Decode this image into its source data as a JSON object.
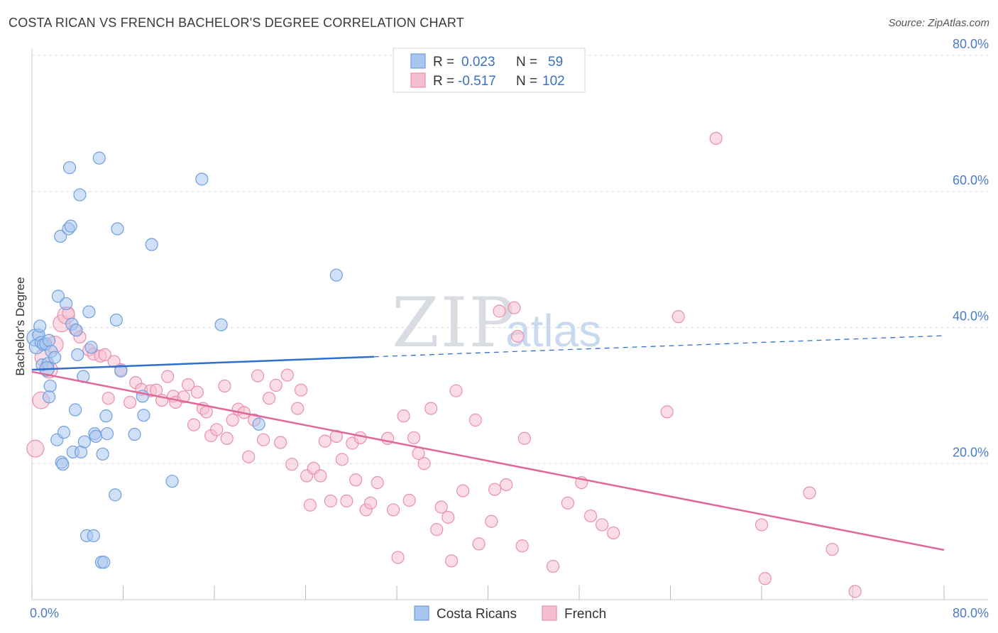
{
  "title": "COSTA RICAN VS FRENCH BACHELOR'S DEGREE CORRELATION CHART",
  "source": "Source: ZipAtlas.com",
  "watermark": {
    "zip": "ZIP",
    "atlas": "atlas"
  },
  "colors": {
    "blue_fill": "#a9c6ee",
    "blue_stroke": "#6f9fde",
    "blue_line": "#2f6fd0",
    "pink_fill": "#f5bfd0",
    "pink_stroke": "#e98fae",
    "pink_line": "#e0679a",
    "grid": "#dddddd",
    "axis_text": "#4a7cc7"
  },
  "legend": {
    "rows": [
      {
        "r_label": "R =",
        "r_value": "0.023",
        "n_label": "N =",
        "n_value": "59"
      },
      {
        "r_label": "R =",
        "r_value": "-0.517",
        "n_label": "N =",
        "n_value": "102"
      }
    ]
  },
  "chart_data": {
    "type": "scatter",
    "xlabel": "",
    "ylabel": "Bachelor's Degree",
    "xlim": [
      0,
      80
    ],
    "ylim": [
      0,
      80
    ],
    "x_tick_labels": [
      "0.0%",
      "80.0%"
    ],
    "y_ticks": [
      20,
      40,
      60,
      80
    ],
    "y_tick_labels": [
      "20.0%",
      "40.0%",
      "60.0%",
      "80.0%"
    ],
    "grid": true,
    "legend_position": "bottom-center",
    "series": [
      {
        "name": "Costa Ricans",
        "trend": {
          "x0": 0,
          "y0": 33.8,
          "x1": 30,
          "y1": 35.7,
          "dash_to_x": 80,
          "dash_to_y": 38.8
        },
        "points": [
          [
            0.3,
            38.5,
            14
          ],
          [
            0.4,
            37.2,
            12
          ],
          [
            0.6,
            38.9,
            10
          ],
          [
            0.7,
            40.2,
            10
          ],
          [
            0.8,
            37.8,
            10
          ],
          [
            0.9,
            34.5,
            10
          ],
          [
            1.0,
            37.5,
            10
          ],
          [
            1.2,
            37.6,
            10
          ],
          [
            1.4,
            34.7,
            10
          ],
          [
            1.5,
            38.1,
            10
          ],
          [
            1.6,
            31.4,
            10
          ],
          [
            1.7,
            36.5,
            10
          ],
          [
            1.5,
            29.8,
            10
          ],
          [
            2.0,
            35.6,
            10
          ],
          [
            2.2,
            23.5,
            10
          ],
          [
            2.3,
            44.6,
            10
          ],
          [
            2.5,
            53.4,
            10
          ],
          [
            2.6,
            20.2,
            10
          ],
          [
            2.7,
            19.9,
            10
          ],
          [
            2.8,
            24.6,
            10
          ],
          [
            3.0,
            43.5,
            10
          ],
          [
            3.2,
            54.5,
            10
          ],
          [
            3.4,
            54.9,
            10
          ],
          [
            3.3,
            63.5,
            10
          ],
          [
            3.5,
            40.5,
            10
          ],
          [
            3.6,
            21.7,
            10
          ],
          [
            3.8,
            27.9,
            10
          ],
          [
            3.9,
            39.6,
            10
          ],
          [
            4.0,
            36.0,
            10
          ],
          [
            4.2,
            59.5,
            10
          ],
          [
            4.3,
            21.7,
            10
          ],
          [
            4.5,
            32.8,
            10
          ],
          [
            4.6,
            23.2,
            10
          ],
          [
            4.8,
            9.4,
            10
          ],
          [
            5.0,
            42.3,
            10
          ],
          [
            5.2,
            37.1,
            10
          ],
          [
            5.4,
            9.4,
            10
          ],
          [
            5.5,
            24.4,
            10
          ],
          [
            5.6,
            24.0,
            10
          ],
          [
            5.9,
            64.9,
            10
          ],
          [
            6.1,
            5.5,
            10
          ],
          [
            6.2,
            21.4,
            10
          ],
          [
            6.3,
            5.5,
            10
          ],
          [
            6.5,
            27.0,
            10
          ],
          [
            6.6,
            24.4,
            10
          ],
          [
            7.3,
            15.4,
            10
          ],
          [
            7.4,
            41.1,
            10
          ],
          [
            7.5,
            54.5,
            10
          ],
          [
            7.8,
            33.6,
            10
          ],
          [
            9.0,
            24.3,
            10
          ],
          [
            9.7,
            29.9,
            10
          ],
          [
            9.8,
            27.1,
            10
          ],
          [
            10.5,
            52.2,
            10
          ],
          [
            12.3,
            17.4,
            10
          ],
          [
            14.9,
            61.8,
            10
          ],
          [
            16.6,
            40.4,
            10
          ],
          [
            19.9,
            25.8,
            10
          ],
          [
            26.7,
            47.7,
            10
          ],
          [
            1.3,
            33.9,
            12
          ]
        ]
      },
      {
        "name": "French",
        "trend": {
          "x0": 0,
          "y0": 33.5,
          "x1": 80,
          "y1": 7.3
        },
        "points": [
          [
            0.3,
            22.2,
            14
          ],
          [
            0.8,
            29.3,
            14
          ],
          [
            1.0,
            35.6,
            14
          ],
          [
            1.5,
            33.8,
            14
          ],
          [
            2.0,
            37.5,
            14
          ],
          [
            2.6,
            40.6,
            14
          ],
          [
            3.0,
            41.8,
            14
          ],
          [
            3.2,
            42.1,
            10
          ],
          [
            3.8,
            39.7,
            10
          ],
          [
            4.2,
            38.6,
            10
          ],
          [
            5.0,
            36.7,
            10
          ],
          [
            5.4,
            36.1,
            10
          ],
          [
            6.0,
            35.8,
            10
          ],
          [
            6.4,
            36.0,
            10
          ],
          [
            6.7,
            29.6,
            10
          ],
          [
            7.2,
            35.0,
            10
          ],
          [
            7.8,
            33.8,
            10
          ],
          [
            8.6,
            29.0,
            10
          ],
          [
            9.1,
            31.9,
            10
          ],
          [
            9.6,
            30.9,
            10
          ],
          [
            10.4,
            30.7,
            10
          ],
          [
            10.9,
            30.8,
            10
          ],
          [
            11.4,
            29.3,
            10
          ],
          [
            11.9,
            32.8,
            10
          ],
          [
            12.4,
            29.9,
            10
          ],
          [
            12.6,
            29.0,
            10
          ],
          [
            13.3,
            29.8,
            10
          ],
          [
            13.7,
            31.6,
            10
          ],
          [
            14.2,
            25.7,
            10
          ],
          [
            14.5,
            30.5,
            10
          ],
          [
            15.0,
            28.1,
            10
          ],
          [
            15.3,
            27.6,
            10
          ],
          [
            15.7,
            24.1,
            10
          ],
          [
            16.2,
            25.0,
            10
          ],
          [
            16.9,
            31.4,
            10
          ],
          [
            17.1,
            23.7,
            10
          ],
          [
            17.6,
            26.4,
            10
          ],
          [
            18.1,
            28.0,
            10
          ],
          [
            18.6,
            27.5,
            10
          ],
          [
            19.0,
            21.0,
            10
          ],
          [
            19.5,
            26.4,
            10
          ],
          [
            19.8,
            32.9,
            10
          ],
          [
            20.3,
            23.5,
            10
          ],
          [
            20.8,
            29.6,
            10
          ],
          [
            21.4,
            31.5,
            10
          ],
          [
            21.8,
            23.1,
            10
          ],
          [
            22.4,
            33.0,
            10
          ],
          [
            22.8,
            19.9,
            10
          ],
          [
            23.3,
            28.1,
            10
          ],
          [
            23.6,
            30.8,
            10
          ],
          [
            24.1,
            18.2,
            10
          ],
          [
            24.4,
            13.9,
            10
          ],
          [
            24.7,
            19.3,
            10
          ],
          [
            25.3,
            18.2,
            10
          ],
          [
            25.7,
            23.3,
            10
          ],
          [
            26.2,
            14.5,
            10
          ],
          [
            26.7,
            24.0,
            10
          ],
          [
            27.2,
            20.6,
            10
          ],
          [
            27.6,
            14.5,
            10
          ],
          [
            28.1,
            23.0,
            10
          ],
          [
            28.4,
            17.6,
            10
          ],
          [
            28.8,
            23.8,
            10
          ],
          [
            29.3,
            13.2,
            10
          ],
          [
            29.7,
            14.2,
            10
          ],
          [
            30.3,
            17.2,
            10
          ],
          [
            31.2,
            23.7,
            10
          ],
          [
            31.7,
            13.2,
            10
          ],
          [
            32.1,
            6.2,
            10
          ],
          [
            32.6,
            27.0,
            10
          ],
          [
            33.1,
            14.6,
            10
          ],
          [
            33.5,
            23.8,
            10
          ],
          [
            33.9,
            21.5,
            10
          ],
          [
            34.4,
            20.0,
            10
          ],
          [
            35.0,
            28.1,
            10
          ],
          [
            35.5,
            10.3,
            10
          ],
          [
            35.9,
            13.6,
            10
          ],
          [
            36.5,
            12.1,
            10
          ],
          [
            36.8,
            5.7,
            10
          ],
          [
            37.2,
            30.7,
            10
          ],
          [
            37.8,
            16.0,
            10
          ],
          [
            38.9,
            26.4,
            10
          ],
          [
            39.2,
            8.2,
            10
          ],
          [
            40.3,
            11.5,
            10
          ],
          [
            40.6,
            16.2,
            10
          ],
          [
            41.0,
            42.4,
            10
          ],
          [
            41.6,
            16.9,
            10
          ],
          [
            42.3,
            42.9,
            10
          ],
          [
            42.6,
            38.7,
            10
          ],
          [
            43.0,
            7.9,
            10
          ],
          [
            43.2,
            23.7,
            10
          ],
          [
            45.7,
            4.9,
            10
          ],
          [
            47.0,
            14.2,
            10
          ],
          [
            48.2,
            17.2,
            10
          ],
          [
            49.0,
            12.3,
            10
          ],
          [
            50.0,
            11.0,
            10
          ],
          [
            51.0,
            9.8,
            10
          ],
          [
            55.7,
            27.6,
            10
          ],
          [
            56.7,
            41.6,
            10
          ],
          [
            60.0,
            67.8,
            10
          ],
          [
            64.0,
            11.0,
            10
          ],
          [
            64.3,
            3.1,
            10
          ],
          [
            68.2,
            15.7,
            10
          ],
          [
            70.2,
            7.4,
            10
          ],
          [
            72.2,
            1.2,
            10
          ]
        ]
      }
    ]
  }
}
